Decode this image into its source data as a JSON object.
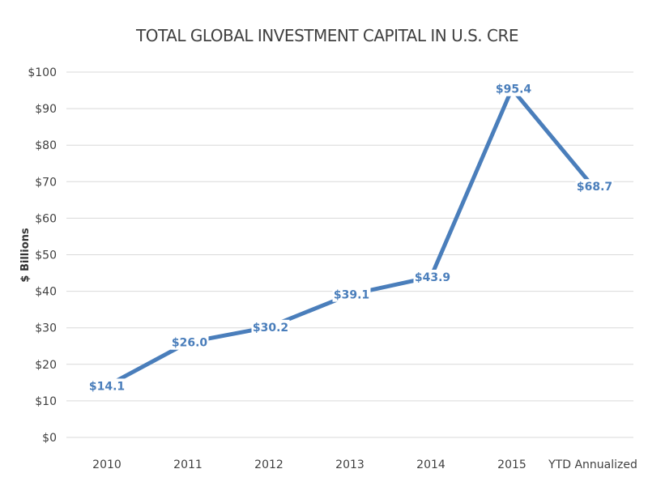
{
  "chart_data": {
    "type": "line",
    "title": "TOTAL GLOBAL INVESTMENT CAPITAL IN U.S. CRE",
    "ylabel": "$ Billions",
    "xlabel": "",
    "categories": [
      "2010",
      "2011",
      "2012",
      "2013",
      "2014",
      "2015",
      "YTD Annualized"
    ],
    "series": [
      {
        "values": [
          14.1,
          26.0,
          30.2,
          39.1,
          43.9,
          95.4,
          68.7
        ],
        "data_labels": [
          "$14.1",
          "$26.0",
          "$30.2",
          "$39.1",
          "$43.9",
          "$95.4",
          "$68.7"
        ],
        "color": "#4a7ebb"
      }
    ],
    "ylim": [
      0,
      100
    ],
    "yticks": [
      0,
      10,
      20,
      30,
      40,
      50,
      60,
      70,
      80,
      90,
      100
    ],
    "ytick_labels": [
      "$0",
      "$10",
      "$20",
      "$30",
      "$40",
      "$50",
      "$60",
      "$70",
      "$80",
      "$90",
      "$100"
    ],
    "grid": true,
    "legend": "none"
  }
}
